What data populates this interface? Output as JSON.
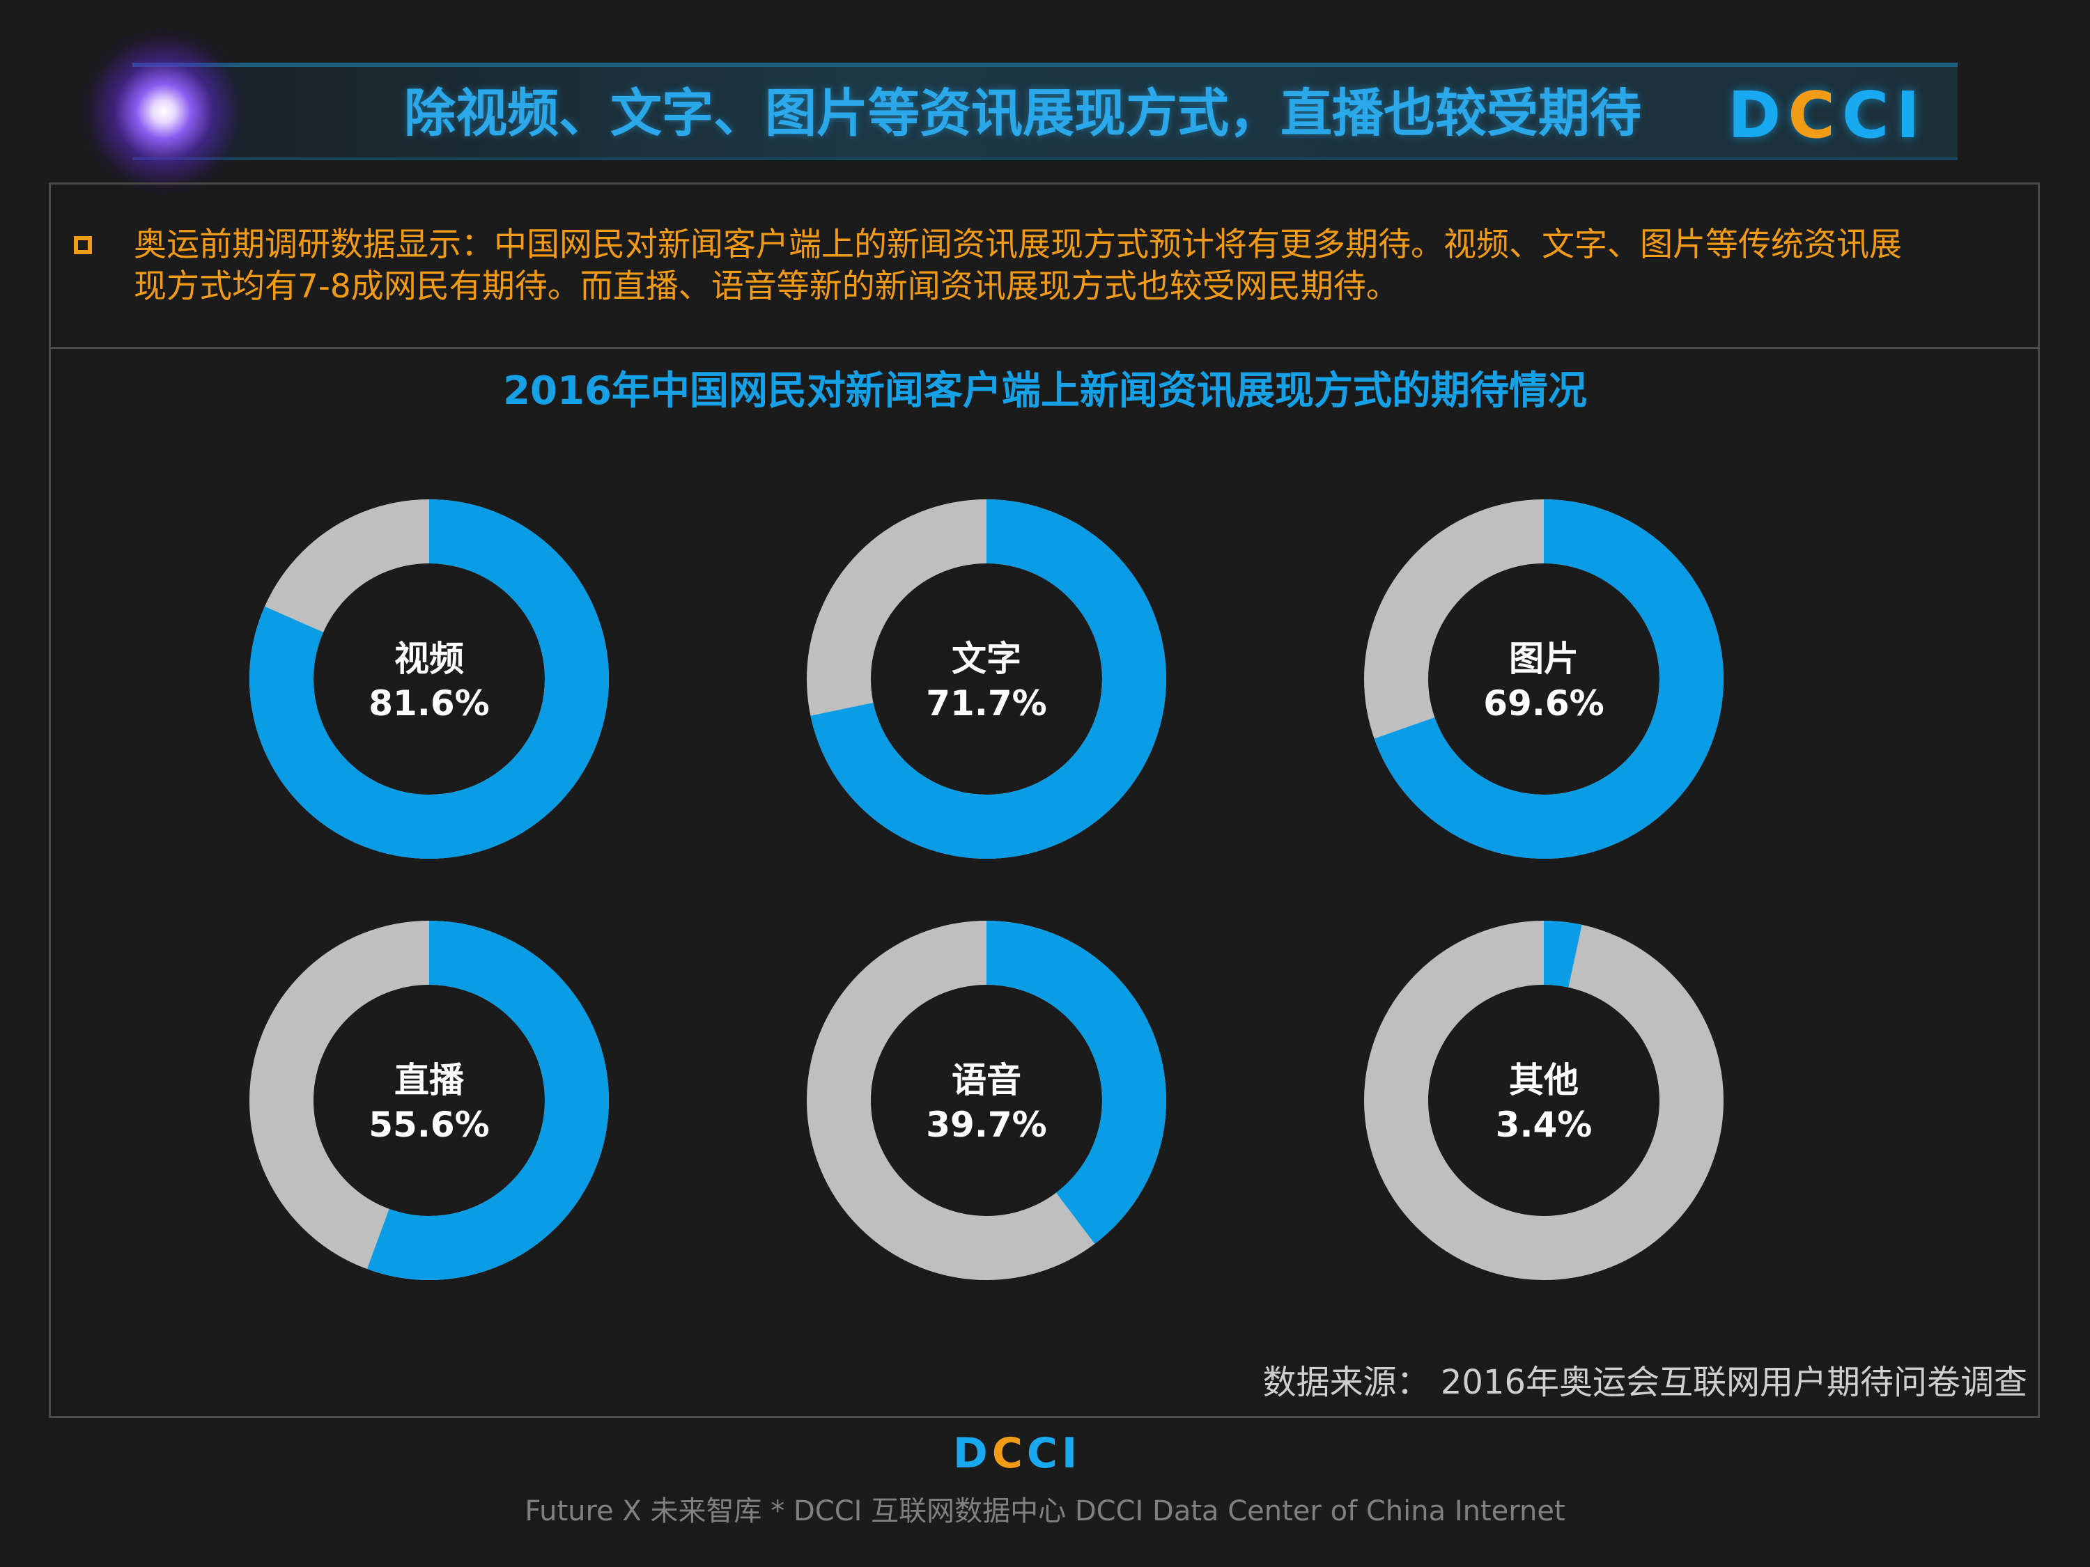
{
  "header": {
    "title": "除视频、文字、图片等资讯展现方式，直播也较受期待",
    "logo_text": "DCCI"
  },
  "note": {
    "text": "奥运前期调研数据显示：中国网民对新闻客户端上的新闻资讯展现方式预计将有更多期待。视频、文字、图片等传统资讯展\n现方式均有7-8成网民有期待。而直播、语音等新的新闻资讯展现方式也较受网民期待。"
  },
  "colors": {
    "value_blue": "#0a9de6",
    "remainder_gray": "#bfbfbf",
    "title_blue": "#16a0e6",
    "note_orange": "#f29b16",
    "background": "#1b1b1b"
  },
  "chart_data": {
    "type": "pie",
    "variant": "donut",
    "title": "2016年中国网民对新闻客户端上新闻资讯展现方式的期待情况",
    "unit": "%",
    "categories": [
      "视频",
      "文字",
      "图片",
      "直播",
      "语音",
      "其他"
    ],
    "values": [
      81.6,
      71.7,
      69.6,
      55.6,
      39.7,
      3.4
    ],
    "value_labels": [
      "81.6%",
      "71.7%",
      "69.6%",
      "55.6%",
      "39.7%",
      "3.4%"
    ],
    "layout": "grid 2 rows x 3 columns"
  },
  "source": {
    "text": "数据来源： 2016年奥运会互联网用户期待问卷调查"
  },
  "footer": {
    "logo_text": "DCCI",
    "text": "Future X 未来智库 * DCCI 互联网数据中心 DCCI Data Center of China Internet"
  }
}
